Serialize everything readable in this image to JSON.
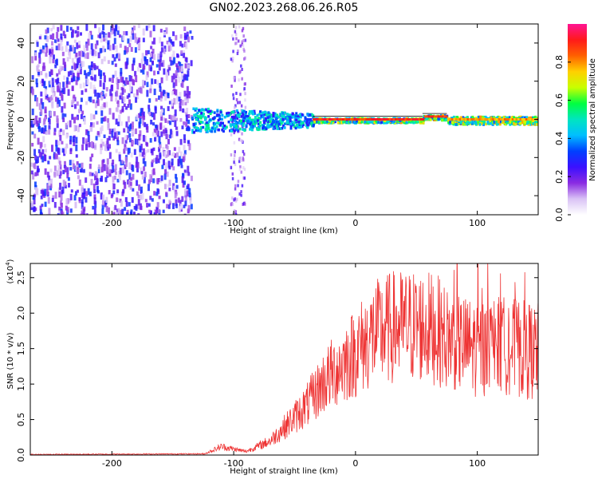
{
  "title": "GN02.2023.268.06.26.R05",
  "chart_data": [
    {
      "type": "heatmap",
      "xlabel": "Height of straight line (km)",
      "ylabel": "Frequency (Hz)",
      "xlim": [
        -267,
        150
      ],
      "ylim": [
        -50,
        50
      ],
      "xticks": [
        -200,
        -100,
        0,
        100
      ],
      "yticks": [
        -40,
        -20,
        0,
        20,
        40
      ],
      "colorbar": {
        "label": "Normalized spectral amplitude",
        "ticks": [
          "0.0",
          "0.2",
          "0.4",
          "0.6",
          "0.8"
        ],
        "range": [
          0,
          1
        ],
        "colors": [
          "#ffffff",
          "#d9c2f5",
          "#8a2be2",
          "#3b10ff",
          "#0040ff",
          "#00bfff",
          "#00e5c0",
          "#00ff40",
          "#c8ff00",
          "#ffd000",
          "#ff6000",
          "#ff1a1a",
          "#ff1493"
        ]
      },
      "regions": [
        {
          "x_range": [
            -267,
            -135
          ],
          "description": "broadband noise",
          "amplitude": 0.2
        },
        {
          "x_range": [
            -135,
            -35
          ],
          "description": "band near 0 Hz",
          "amplitude": 0.5
        },
        {
          "x_range": [
            -35,
            55
          ],
          "description": "narrow line at 0 Hz",
          "amplitude": 0.95
        },
        {
          "x_range": [
            55,
            75
          ],
          "description": "narrow line at ~+1.5 Hz",
          "amplitude": 0.95
        },
        {
          "x_range": [
            75,
            150
          ],
          "description": "line near 0 Hz",
          "amplitude": 0.85
        }
      ]
    },
    {
      "type": "line",
      "xlabel": "Height of straight line (km)",
      "ylabel": "SNR (10 * v/v)",
      "scale_label": "(x10",
      "scale_exp": "4",
      "ylabel_suffix": ")",
      "xlim": [
        -267,
        150
      ],
      "ylim": [
        0,
        2.7
      ],
      "xticks": [
        -200,
        -100,
        0,
        100
      ],
      "yticks": [
        "0.0",
        "0.5",
        "1.0",
        "1.5",
        "2.0",
        "2.5"
      ],
      "series": [
        {
          "color": "#ee3333",
          "envelope": [
            {
              "x": -267,
              "y": 0.0
            },
            {
              "x": -125,
              "y": 0.01
            },
            {
              "x": -110,
              "y": 0.12
            },
            {
              "x": -90,
              "y": 0.05
            },
            {
              "x": -70,
              "y": 0.2
            },
            {
              "x": -55,
              "y": 0.45
            },
            {
              "x": -40,
              "y": 0.7
            },
            {
              "x": -25,
              "y": 1.05
            },
            {
              "x": -10,
              "y": 1.3
            },
            {
              "x": 0,
              "y": 1.45
            },
            {
              "x": 15,
              "y": 1.7
            },
            {
              "x": 30,
              "y": 1.8
            },
            {
              "x": 50,
              "y": 1.82
            },
            {
              "x": 65,
              "y": 1.78
            },
            {
              "x": 80,
              "y": 1.6
            },
            {
              "x": 100,
              "y": 1.5
            },
            {
              "x": 120,
              "y": 1.55
            },
            {
              "x": 150,
              "y": 1.45
            }
          ]
        }
      ]
    }
  ]
}
